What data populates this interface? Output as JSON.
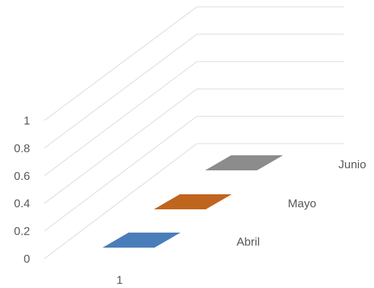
{
  "chart_data": {
    "type": "bar",
    "subtype": "3d-bar",
    "categories": [
      "1"
    ],
    "depth_labels": [
      "Abril",
      "Mayo",
      "Junio"
    ],
    "series": [
      {
        "name": "Abril",
        "values": [
          0
        ],
        "color": "#4a7ebb"
      },
      {
        "name": "Mayo",
        "values": [
          0
        ],
        "color": "#c0651e"
      },
      {
        "name": "Junio",
        "values": [
          0
        ],
        "color": "#8c8c8c"
      }
    ],
    "y_ticks": [
      "0",
      "0.2",
      "0.4",
      "0.6",
      "0.8",
      "1"
    ],
    "ylim": [
      0,
      1
    ],
    "grid": true,
    "title": "",
    "xlabel": "",
    "ylabel": ""
  }
}
